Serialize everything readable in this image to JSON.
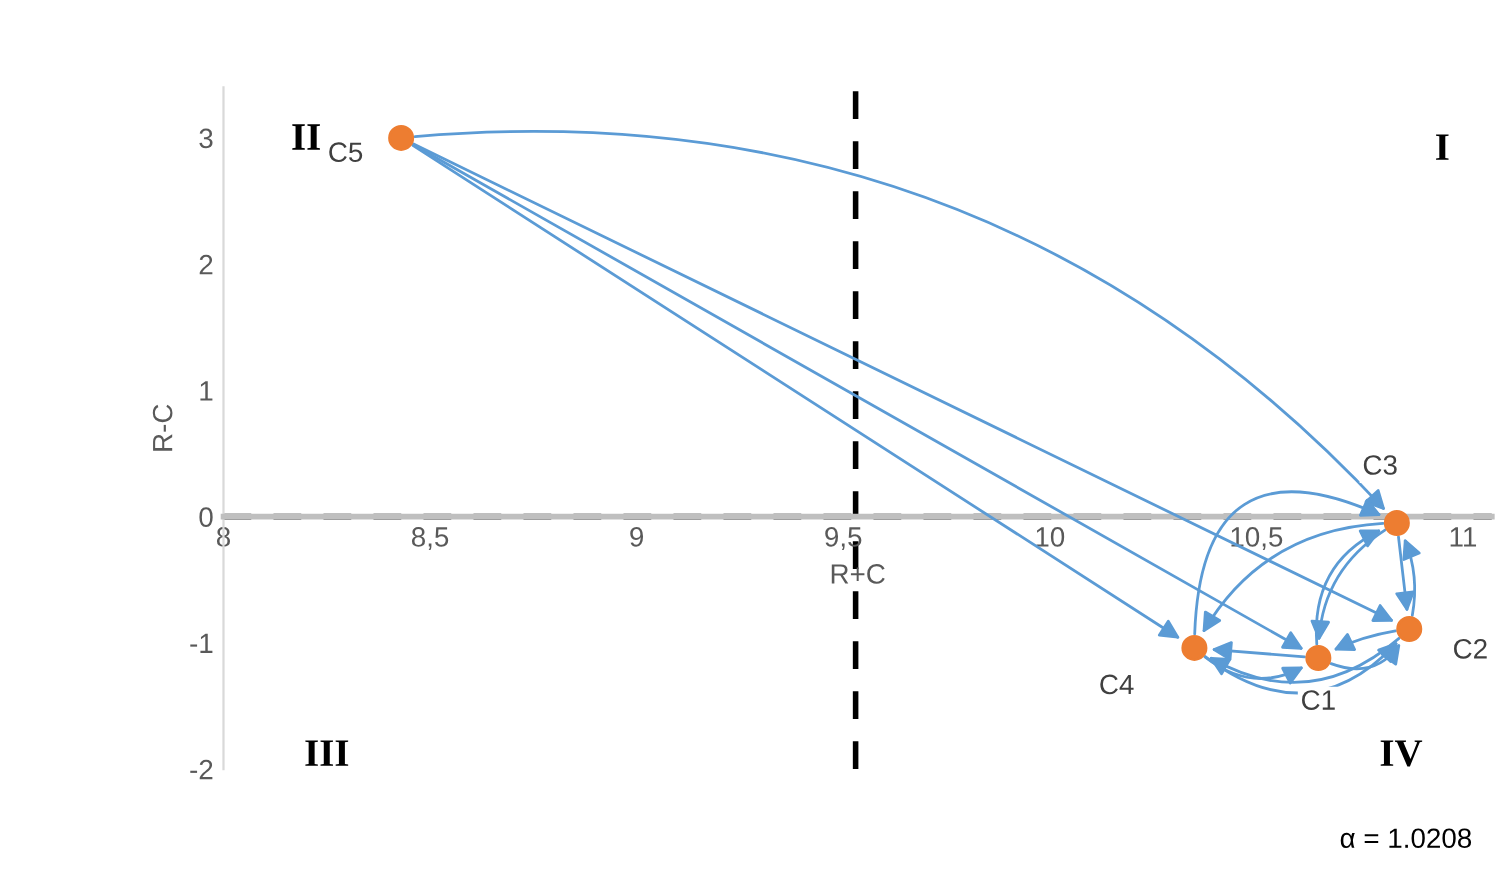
{
  "chart_data": {
    "type": "scatter",
    "xlabel": "R+C",
    "ylabel": "R-C",
    "x": [
      8.43,
      10.84,
      10.87,
      10.65,
      10.35
    ],
    "series": [
      {
        "color": "#ed7d31",
        "values": [
          3.0,
          -0.05,
          -0.89,
          -1.12,
          -1.04
        ]
      }
    ],
    "marker": "circle",
    "grid": false,
    "xlim": [
      8,
      11.07
    ],
    "ylim": [
      -2,
      3.4
    ],
    "xticks": [
      8,
      {
        "value": 8.5,
        "label": "8,5"
      },
      9,
      {
        "value": 9.5,
        "label": "9,5"
      },
      10,
      {
        "value": 10.5,
        "label": "10,5"
      },
      11
    ],
    "yticks": [
      -2,
      -1,
      0,
      1,
      2,
      3
    ],
    "ref_lines": [
      {
        "axis": "x",
        "value": 9.53,
        "color": "#000000",
        "line_style": "dashed"
      },
      {
        "axis": "y",
        "value": 0,
        "color": "#000000",
        "line_style": "dashed"
      }
    ],
    "annotations": [
      {
        "text": "C5",
        "x": 8.43,
        "y": 3.0
      },
      {
        "text": "C3",
        "x": 10.84,
        "y": -0.05
      },
      {
        "text": "C2",
        "x": 10.87,
        "y": -0.89
      },
      {
        "text": "C1",
        "x": 10.65,
        "y": -1.12
      },
      {
        "text": "C4",
        "x": 10.35,
        "y": -1.04
      },
      "I",
      "II",
      "III",
      "IV",
      "α = 1.0208"
    ]
  }
}
